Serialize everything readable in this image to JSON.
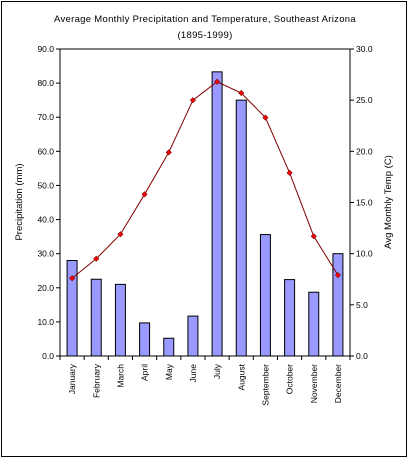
{
  "chart_data": {
    "type": "bar",
    "title": "Average Monthly Precipitation and Temperature, Southeast Arizona",
    "subtitle": "(1895-1999)",
    "categories": [
      "January",
      "February",
      "March",
      "April",
      "May",
      "June",
      "July",
      "August",
      "September",
      "October",
      "November",
      "December"
    ],
    "series": [
      {
        "type": "bar",
        "axis": "left",
        "color": "#9999ff",
        "values": [
          28.0,
          22.5,
          21.0,
          9.7,
          5.2,
          11.7,
          83.3,
          75.0,
          35.6,
          22.4,
          18.7,
          30.0
        ]
      },
      {
        "type": "line",
        "axis": "right",
        "color": "#800000",
        "marker_color": "#ff0000",
        "values": [
          7.6,
          9.5,
          11.9,
          15.8,
          19.9,
          25.0,
          26.8,
          25.7,
          23.3,
          17.9,
          11.7,
          7.9
        ]
      }
    ],
    "ylabel": "Precipitation (mm)",
    "y2label": "Avg Monthly Temp (C)",
    "ylim": [
      0,
      90
    ],
    "y2lim": [
      0,
      30
    ],
    "yticks": [
      "0.0",
      "10.0",
      "20.0",
      "30.0",
      "40.0",
      "50.0",
      "60.0",
      "70.0",
      "80.0",
      "90.0"
    ],
    "y2ticks": [
      "0.0",
      "5.0",
      "10.0",
      "15.0",
      "20.0",
      "25.0",
      "30.0"
    ],
    "grid": false,
    "legend": "none"
  }
}
